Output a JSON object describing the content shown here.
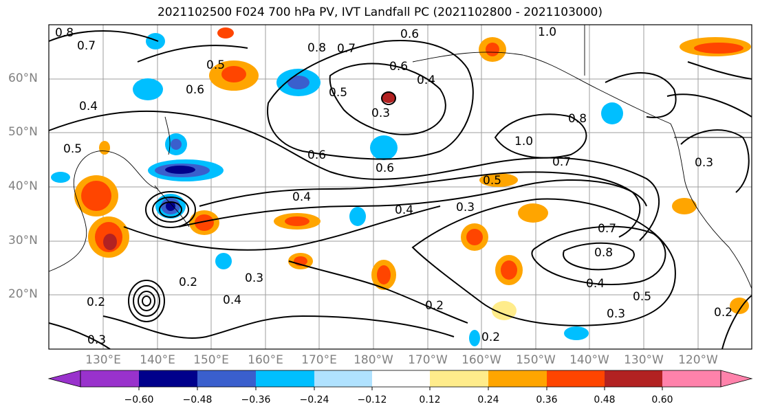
{
  "title": "2021102500 F024 700 hPa PV, IVT Landfall PC (2021102800 - 2021103000)",
  "map": {
    "lat_labels": [
      "60°N",
      "50°N",
      "40°N",
      "30°N",
      "20°N"
    ],
    "lon_labels": [
      "130°E",
      "140°E",
      "150°E",
      "160°E",
      "170°E",
      "180°W",
      "170°W",
      "160°W",
      "150°W",
      "140°W",
      "130°W",
      "120°W"
    ],
    "contour_labels": [
      "0.8",
      "0.7",
      "0.6",
      "0.5",
      "0.4",
      "0.6",
      "0.5",
      "0.4",
      "0.3",
      "0.8",
      "0.7",
      "0.6",
      "0.5",
      "0.4",
      "0.3",
      "0.2",
      "1.0",
      "0.7",
      "0.8",
      "0.4",
      "0.5",
      "0.2",
      "0.3",
      "0.4",
      "0.2",
      "0.3",
      "0.4",
      "0.6",
      "0.7",
      "0.8",
      "1.0",
      "0.6",
      "0.5",
      "0.3",
      "0.2",
      "0.2",
      "0.3"
    ]
  },
  "colorbar": {
    "tick_labels": [
      "−0.60",
      "−0.48",
      "−0.36",
      "−0.24",
      "−0.12",
      "0.12",
      "0.24",
      "0.36",
      "0.48",
      "0.60"
    ],
    "colors": [
      "#9932CC",
      "#00008B",
      "#3A5FCD",
      "#00BFFF",
      "#B0E2FF",
      "#FFFFFF",
      "#FFEC8B",
      "#FFA500",
      "#FF4500",
      "#B22222",
      "#FF82AB"
    ]
  }
}
